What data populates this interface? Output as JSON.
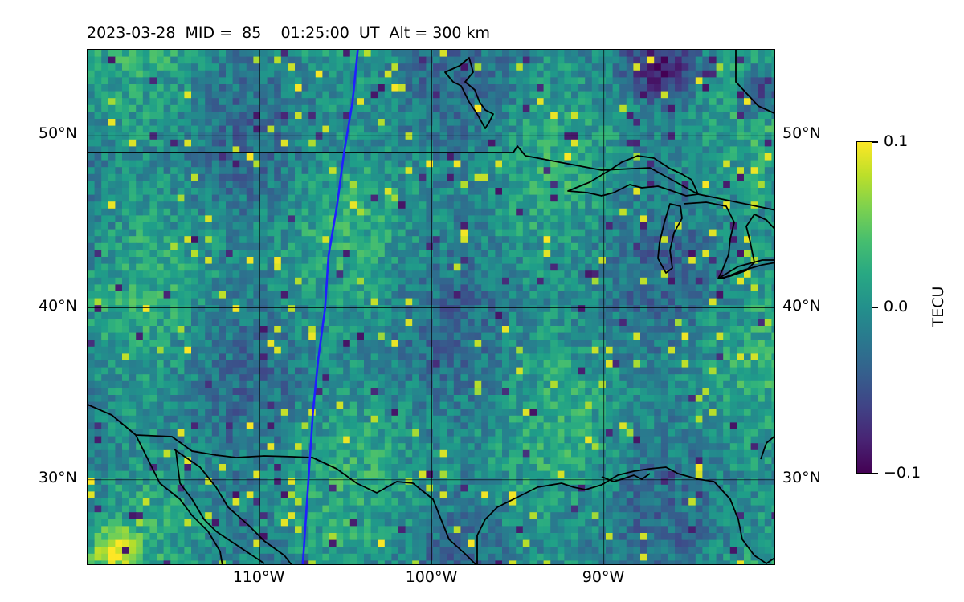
{
  "title": "2023-03-28  MID =  85    01:25:00  UT  Alt = 300 km",
  "map": {
    "projection": "equirectangular",
    "lon_range": [
      -120,
      -80
    ],
    "lat_range": [
      25,
      55
    ],
    "gridlines": true,
    "lat_ticks": [
      {
        "value": 50,
        "label": "50°N"
      },
      {
        "value": 40,
        "label": "40°N"
      },
      {
        "value": 30,
        "label": "30°N"
      }
    ],
    "lon_ticks": [
      {
        "value": -110,
        "label": "110°W"
      },
      {
        "value": -100,
        "label": "100°W"
      },
      {
        "value": -90,
        "label": "90°W"
      }
    ],
    "overlay_line_color": "#1f1fff",
    "coastline_color": "#000000"
  },
  "colorbar": {
    "label": "TECU",
    "min": -0.1,
    "max": 0.1,
    "colormap": "viridis",
    "ticks": [
      {
        "value": 0.1,
        "label": "0.1"
      },
      {
        "value": 0.0,
        "label": "0.0"
      },
      {
        "value": -0.1,
        "label": "−0.1"
      }
    ]
  }
}
